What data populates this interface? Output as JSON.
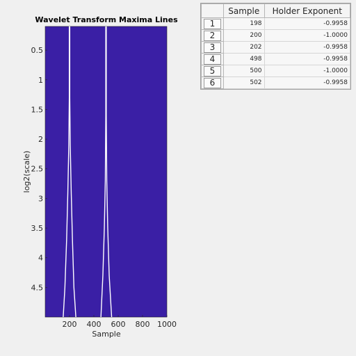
{
  "chart_data": {
    "type": "heatmap",
    "title": "Wavelet Transform Maxima Lines",
    "xlabel": "Sample",
    "ylabel": "log2(scale)",
    "xlim": [
      0,
      1000
    ],
    "ylim": [
      0.1,
      5.0
    ],
    "y_reversed": true,
    "x_ticks": [
      200,
      400,
      600,
      800,
      1000
    ],
    "y_ticks": [
      0.5,
      1,
      1.5,
      2,
      2.5,
      3,
      3.5,
      4,
      4.5
    ],
    "background_color": "#3a1fa5",
    "line_color": "#ffffff",
    "maxima_lines": [
      {
        "name": "",
        "points": [
          [
            198,
            0.1
          ],
          [
            198,
            1.3
          ],
          [
            194,
            2.1
          ],
          [
            186,
            2.9
          ],
          [
            176,
            3.7
          ],
          [
            162,
            4.5
          ],
          [
            148,
            5.0
          ]
        ]
      },
      {
        "name": "",
        "points": [
          [
            202,
            0.1
          ],
          [
            202,
            1.3
          ],
          [
            206,
            2.1
          ],
          [
            214,
            2.9
          ],
          [
            224,
            3.7
          ],
          [
            236,
            4.5
          ],
          [
            252,
            5.0
          ]
        ]
      },
      {
        "name": "",
        "points": [
          [
            498,
            0.1
          ],
          [
            498,
            1.6
          ],
          [
            494,
            2.7
          ],
          [
            486,
            3.5
          ],
          [
            474,
            4.3
          ],
          [
            458,
            5.0
          ]
        ]
      },
      {
        "name": "",
        "points": [
          [
            502,
            0.1
          ],
          [
            502,
            1.6
          ],
          [
            506,
            2.7
          ],
          [
            514,
            3.5
          ],
          [
            526,
            4.3
          ],
          [
            546,
            5.0
          ]
        ]
      }
    ]
  },
  "table": {
    "headers": [
      "Sample",
      "Holder Exponent"
    ],
    "rows": [
      {
        "index": "1",
        "sample": "198",
        "holder": "-0.9958"
      },
      {
        "index": "2",
        "sample": "200",
        "holder": "-1.0000"
      },
      {
        "index": "3",
        "sample": "202",
        "holder": "-0.9958"
      },
      {
        "index": "4",
        "sample": "498",
        "holder": "-0.9958"
      },
      {
        "index": "5",
        "sample": "500",
        "holder": "-1.0000"
      },
      {
        "index": "6",
        "sample": "502",
        "holder": "-0.9958"
      }
    ]
  }
}
